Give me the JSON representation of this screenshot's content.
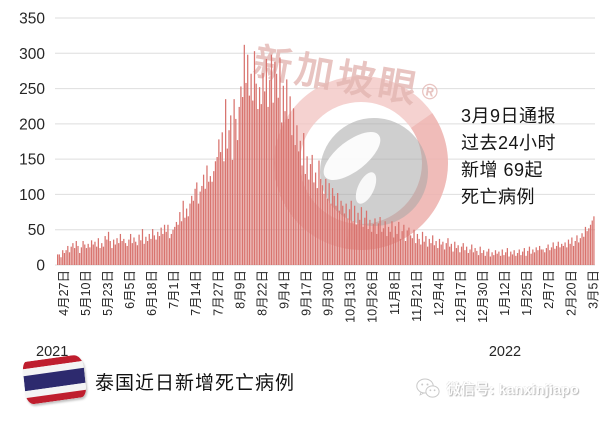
{
  "watermark": {
    "brand_text": "新加坡眼",
    "registered_mark": "®"
  },
  "annotation": {
    "line1": "3月9日通报",
    "line2": "过去24小时",
    "line3": "新增 69起",
    "line4": "死亡病例"
  },
  "footer": {
    "title": "泰国近日新增死亡病例",
    "wechat_label": "微信号: kanxinjiapo",
    "flag_icon": "thailand-flag"
  },
  "colors": {
    "bar": "#d8736e",
    "gridline": "#dedede",
    "axis_text": "#262626",
    "watermark_pink": "#f2c3c0",
    "watermark_gray": "#a8a8a8",
    "flag_red": "#bf1e2e",
    "flag_blue": "#2d2a6e"
  },
  "chart_data": {
    "type": "bar",
    "title": "泰国近日新增死亡病例",
    "xlabel": "",
    "ylabel": "",
    "ylim": [
      0,
      350
    ],
    "yticks": [
      0,
      50,
      100,
      150,
      200,
      250,
      300,
      350
    ],
    "grid": true,
    "legend": "none",
    "bar_color": "#d8736e",
    "x_tick_label_every_n_days": 13,
    "x_tick_labels": [
      "4月27日",
      "5月10日",
      "5月23日",
      "6月5日",
      "6月18日",
      "7月1日",
      "7月14日",
      "7月27日",
      "8月9日",
      "8月22日",
      "9月4日",
      "9月17日",
      "9月30日",
      "10月13日",
      "10月26日",
      "11月8日",
      "11月21日",
      "12月4日",
      "12月17日",
      "12月30日",
      "1月12日",
      "1月25日",
      "2月7日",
      "2月20日",
      "3月5日"
    ],
    "x_year_labels": {
      "start": "2021",
      "end": "2022"
    },
    "values": [
      15,
      15,
      11,
      21,
      17,
      21,
      27,
      18,
      26,
      31,
      24,
      34,
      27,
      17,
      25,
      34,
      29,
      24,
      30,
      25,
      35,
      29,
      33,
      26,
      38,
      24,
      31,
      26,
      41,
      36,
      47,
      34,
      24,
      36,
      29,
      38,
      31,
      44,
      34,
      37,
      31,
      27,
      36,
      44,
      31,
      39,
      33,
      28,
      43,
      35,
      51,
      30,
      40,
      34,
      44,
      37,
      51,
      42,
      36,
      47,
      41,
      53,
      44,
      57,
      47,
      57,
      38,
      44,
      50,
      54,
      61,
      57,
      75,
      62,
      91,
      67,
      80,
      69,
      87,
      98,
      91,
      108,
      117,
      87,
      104,
      112,
      128,
      108,
      141,
      118,
      126,
      118,
      133,
      147,
      153,
      178,
      160,
      188,
      147,
      235,
      165,
      191,
      212,
      149,
      235,
      207,
      177,
      224,
      253,
      238,
      312,
      258,
      298,
      240,
      271,
      233,
      303,
      257,
      221,
      252,
      228,
      272,
      246,
      292,
      224,
      262,
      298,
      230,
      288,
      271,
      237,
      294,
      202,
      254,
      218,
      263,
      207,
      239,
      184,
      222,
      170,
      198,
      161,
      176,
      141,
      187,
      129,
      154,
      121,
      143,
      156,
      117,
      131,
      109,
      148,
      122,
      113,
      101,
      122,
      94,
      116,
      87,
      109,
      98,
      84,
      102,
      77,
      91,
      84,
      73,
      87,
      66,
      79,
      91,
      62,
      84,
      57,
      74,
      64,
      82,
      54,
      67,
      77,
      51,
      64,
      47,
      58,
      66,
      44,
      59,
      68,
      47,
      52,
      62,
      41,
      54,
      47,
      62,
      39,
      55,
      44,
      61,
      37,
      48,
      57,
      34,
      49,
      53,
      42,
      38,
      50,
      31,
      44,
      37,
      29,
      47,
      33,
      41,
      26,
      37,
      31,
      42,
      28,
      34,
      24,
      37,
      29,
      33,
      22,
      31,
      38,
      26,
      30,
      19,
      33,
      24,
      28,
      18,
      26,
      31,
      21,
      26,
      17,
      22,
      29,
      18,
      24,
      20,
      14,
      26,
      17,
      21,
      13,
      19,
      23,
      12,
      18,
      14,
      21,
      16,
      19,
      13,
      22,
      14,
      18,
      24,
      12,
      19,
      15,
      21,
      13,
      17,
      22,
      14,
      19,
      24,
      13,
      20,
      26,
      16,
      22,
      18,
      25,
      21,
      27,
      22,
      22,
      18,
      24,
      29,
      21,
      25,
      32,
      23,
      27,
      33,
      25,
      30,
      27,
      32,
      25,
      36,
      30,
      39,
      27,
      34,
      42,
      32,
      38,
      45,
      40,
      54,
      48,
      52,
      57,
      63,
      69
    ]
  }
}
